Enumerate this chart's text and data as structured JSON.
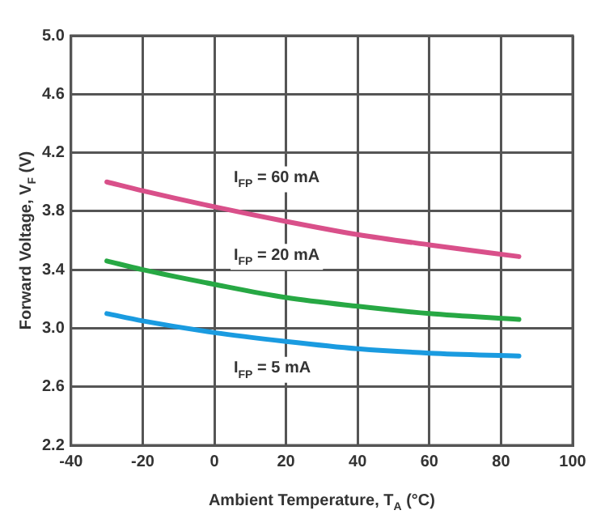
{
  "chart_data": {
    "type": "line",
    "xlabel": "Ambient Temperature, T$_{A}$ (°C)",
    "ylabel": "Forward Voltage, V$_{F}$ (V)",
    "x": [
      -30,
      -20,
      0,
      20,
      40,
      60,
      85
    ],
    "series": [
      {
        "name": "I$_{FP}$ = 60 mA",
        "color": "#d9508a",
        "values": [
          4.0,
          3.94,
          3.83,
          3.73,
          3.64,
          3.57,
          3.49
        ]
      },
      {
        "name": "I$_{FP}$ = 20 mA",
        "color": "#27a844",
        "values": [
          3.46,
          3.4,
          3.3,
          3.21,
          3.15,
          3.1,
          3.06
        ]
      },
      {
        "name": "I$_{FP}$ = 5 mA",
        "color": "#1a9be0",
        "values": [
          3.1,
          3.05,
          2.97,
          2.91,
          2.86,
          2.83,
          2.81
        ]
      }
    ],
    "xlim": [
      -40,
      100
    ],
    "xticks": [
      -40,
      -20,
      0,
      20,
      40,
      60,
      80,
      100
    ],
    "ylim": [
      2.2,
      5.0
    ],
    "yticks": [
      {
        "value": 2.2,
        "label": "2.2"
      },
      {
        "value": 2.6,
        "label": "2.6"
      },
      {
        "value": 3.0,
        "label": "3.0"
      },
      {
        "value": 3.4,
        "label": "3.4"
      },
      {
        "value": 3.8,
        "label": "3.8"
      },
      {
        "value": 4.2,
        "label": "4.2"
      },
      {
        "value": 4.6,
        "label": "4.6"
      },
      {
        "value": 5.0,
        "label": "5.0"
      }
    ],
    "grid": true,
    "legend": false,
    "marker": "none",
    "line_style": "solid"
  }
}
